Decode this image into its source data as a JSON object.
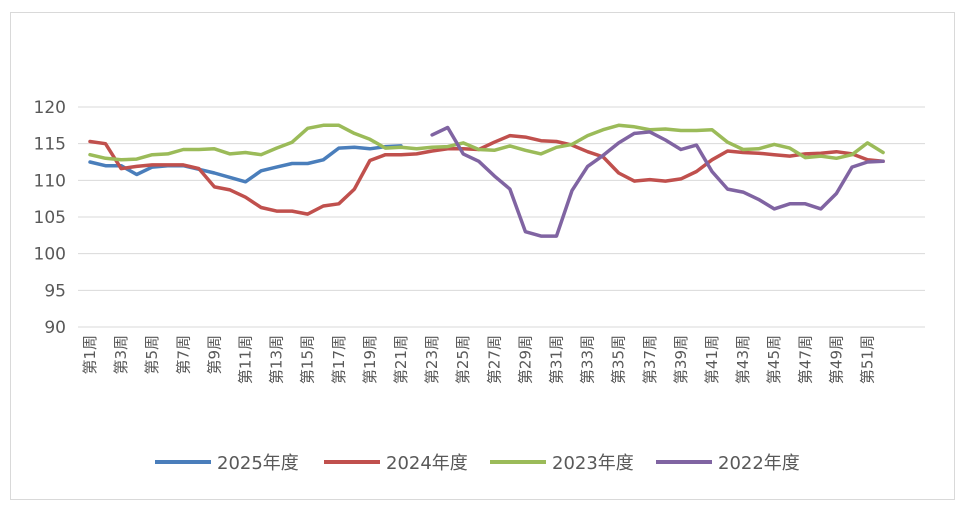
{
  "chart_data": {
    "type": "line",
    "title": "",
    "xlabel": "",
    "ylabel": "",
    "ylim": [
      90,
      120
    ],
    "yticks": [
      90,
      95,
      100,
      105,
      110,
      115,
      120
    ],
    "grid": true,
    "legend_position": "bottom",
    "x_tick_labels": [
      "第1周",
      "第3周",
      "第5周",
      "第7周",
      "第9周",
      "第11周",
      "第13周",
      "第15周",
      "第17周",
      "第19周",
      "第21周",
      "第23周",
      "第25周",
      "第27周",
      "第29周",
      "第31周",
      "第33周",
      "第35周",
      "第37周",
      "第39周",
      "第41周",
      "第43周",
      "第45周",
      "第47周",
      "第49周",
      "第51周"
    ],
    "x_tick_weeks": [
      1,
      3,
      5,
      7,
      9,
      11,
      13,
      15,
      17,
      19,
      21,
      23,
      25,
      27,
      29,
      31,
      33,
      35,
      37,
      39,
      41,
      43,
      45,
      47,
      49,
      51
    ],
    "series": [
      {
        "name": "2025年度",
        "color": "#4a7ebb",
        "x": [
          1,
          2,
          3,
          4,
          5,
          6,
          7,
          8,
          9,
          10,
          11,
          12,
          13,
          14,
          15,
          16,
          17,
          18,
          19,
          20,
          21
        ],
        "values": [
          112.5,
          112.0,
          112.0,
          110.8,
          111.8,
          112.0,
          112.0,
          111.5,
          111.0,
          110.4,
          109.8,
          111.3,
          111.8,
          112.3,
          112.3,
          112.8,
          114.4,
          114.5,
          114.3,
          114.6,
          114.7
        ]
      },
      {
        "name": "2024年度",
        "color": "#c0504d",
        "x": [
          1,
          2,
          3,
          4,
          5,
          6,
          7,
          8,
          9,
          10,
          11,
          12,
          13,
          14,
          15,
          16,
          17,
          18,
          19,
          20,
          21,
          22,
          23,
          24,
          25,
          26,
          27,
          28,
          29,
          30,
          31,
          32,
          33,
          34,
          35,
          36,
          37,
          38,
          39,
          40,
          41,
          42,
          43,
          44,
          45,
          46,
          47,
          48,
          49,
          50,
          51,
          52
        ],
        "values": [
          115.3,
          115.0,
          111.6,
          111.9,
          112.1,
          112.1,
          112.1,
          111.6,
          109.1,
          108.7,
          107.7,
          106.3,
          105.8,
          105.8,
          105.4,
          106.5,
          106.8,
          108.8,
          112.7,
          113.5,
          113.5,
          113.6,
          114.0,
          114.3,
          114.3,
          114.2,
          115.2,
          116.1,
          115.9,
          115.4,
          115.3,
          114.8,
          113.9,
          113.2,
          111.0,
          109.9,
          110.1,
          109.9,
          110.2,
          111.2,
          112.8,
          114.0,
          113.8,
          113.7,
          113.5,
          113.3,
          113.6,
          113.7,
          113.9,
          113.6,
          112.8,
          112.6
        ]
      },
      {
        "name": "2023年度",
        "color": "#9bbb59",
        "x": [
          1,
          2,
          3,
          4,
          5,
          6,
          7,
          8,
          9,
          10,
          11,
          12,
          13,
          14,
          15,
          16,
          17,
          18,
          19,
          20,
          21,
          22,
          23,
          24,
          25,
          26,
          27,
          28,
          29,
          30,
          31,
          32,
          33,
          34,
          35,
          36,
          37,
          38,
          39,
          40,
          41,
          42,
          43,
          44,
          45,
          46,
          47,
          48,
          49,
          50,
          51,
          52
        ],
        "values": [
          113.5,
          113.0,
          112.8,
          112.9,
          113.5,
          113.6,
          114.2,
          114.2,
          114.3,
          113.6,
          113.8,
          113.5,
          114.4,
          115.2,
          117.1,
          117.5,
          117.5,
          116.4,
          115.6,
          114.4,
          114.5,
          114.3,
          114.5,
          114.6,
          115.1,
          114.2,
          114.1,
          114.7,
          114.1,
          113.6,
          114.5,
          114.9,
          116.1,
          116.9,
          117.5,
          117.3,
          116.9,
          117.0,
          116.8,
          116.8,
          116.9,
          115.2,
          114.2,
          114.3,
          114.9,
          114.4,
          113.1,
          113.3,
          113.0,
          113.5,
          115.1,
          113.8
        ]
      },
      {
        "name": "2022年度",
        "color": "#8064a2",
        "x": [
          23,
          24,
          25,
          26,
          27,
          28,
          29,
          30,
          31,
          32,
          33,
          34,
          35,
          36,
          37,
          38,
          39,
          40,
          41,
          42,
          43,
          44,
          45,
          46,
          47,
          48,
          49,
          50,
          51,
          52
        ],
        "values": [
          116.2,
          117.2,
          113.6,
          112.6,
          110.6,
          108.8,
          103.0,
          102.4,
          102.4,
          108.6,
          111.9,
          113.4,
          115.1,
          116.4,
          116.6,
          115.5,
          114.2,
          114.8,
          111.2,
          108.8,
          108.4,
          107.4,
          106.1,
          106.8,
          106.8,
          106.1,
          108.2,
          111.8,
          112.5,
          112.6
        ]
      }
    ]
  }
}
